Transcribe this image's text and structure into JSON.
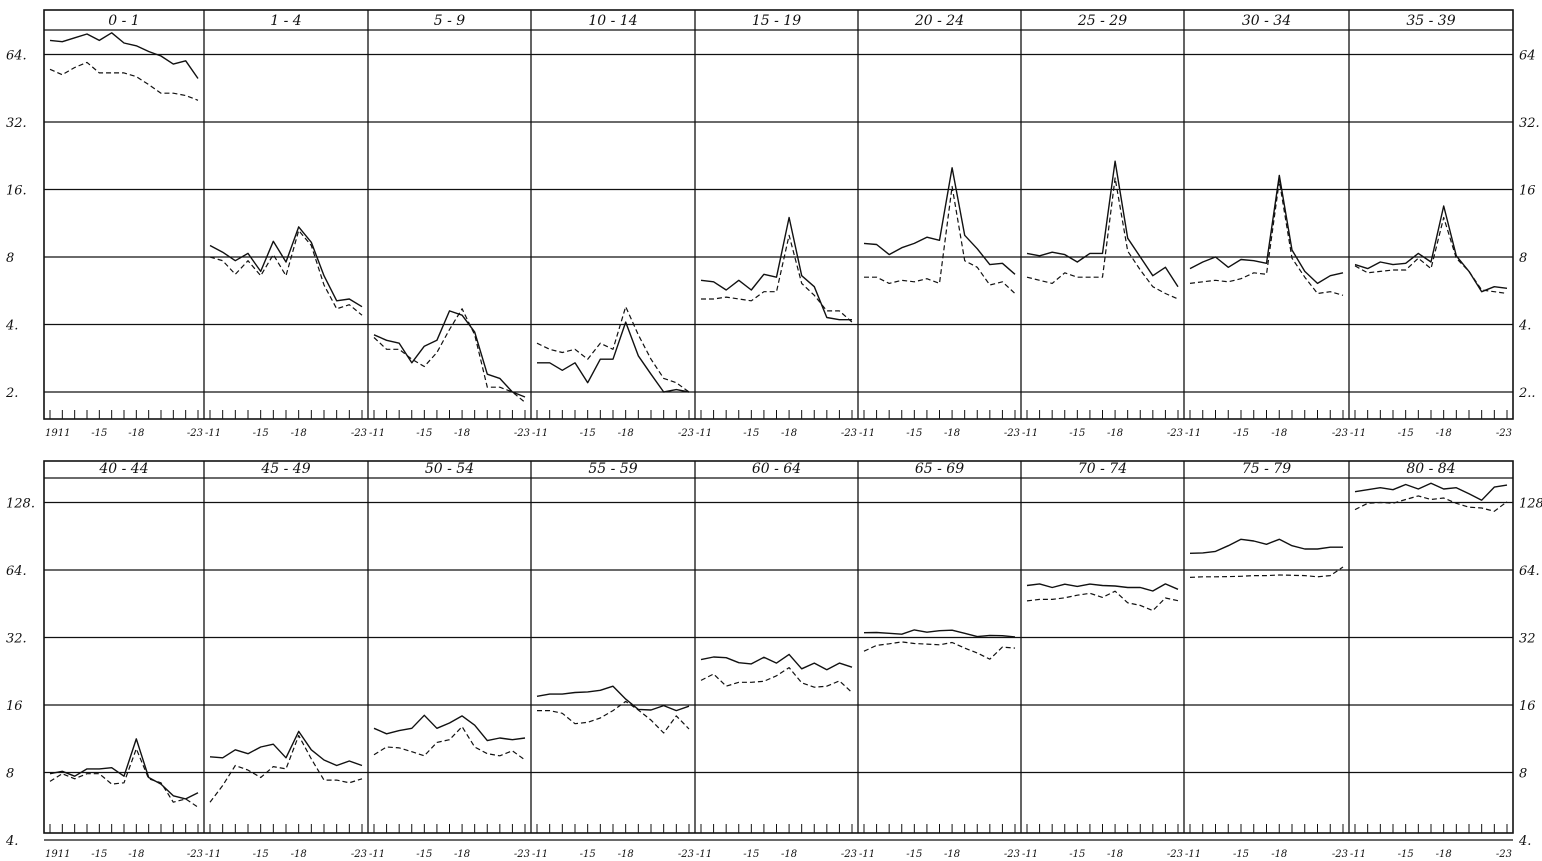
{
  "chart_data": [
    {
      "type": "line",
      "title": "",
      "scale": "log2",
      "ylim": [
        1.7,
        88
      ],
      "ytick_labels": {
        "left": [
          "64.",
          "32.",
          "16.",
          "8",
          "4.",
          "2."
        ],
        "right": [
          "64",
          "32.",
          "16",
          "8",
          "4.",
          "2.."
        ]
      },
      "x": [
        1911,
        1912,
        1913,
        1914,
        1915,
        1916,
        1917,
        1918,
        1919,
        1920,
        1921,
        1922,
        1923
      ],
      "x_tick_labels": [
        "1911",
        "-15",
        "-18",
        "-23"
      ],
      "panels": [
        {
          "age": "0 - 1",
          "series": [
            {
              "style": "solid",
              "values": [
                74,
                73,
                76,
                79,
                74,
                80,
                72,
                70,
                66,
                63,
                58,
                60,
                50
              ]
            },
            {
              "style": "dashed",
              "values": [
                55,
                52,
                56,
                59,
                53,
                53,
                53,
                51,
                47,
                43,
                43,
                42,
                40
              ]
            }
          ]
        },
        {
          "age": "1 - 4",
          "series": [
            {
              "style": "solid",
              "values": [
                9,
                8.4,
                7.7,
                8.3,
                6.9,
                9.4,
                7.6,
                10.9,
                9.3,
                6.6,
                5.1,
                5.2,
                4.8
              ]
            },
            {
              "style": "dashed",
              "values": [
                8,
                7.7,
                6.7,
                7.7,
                6.6,
                8.2,
                6.6,
                10.5,
                9,
                6,
                4.7,
                4.9,
                4.4
              ]
            }
          ]
        },
        {
          "age": "5 - 9",
          "series": [
            {
              "style": "solid",
              "values": [
                3.6,
                3.4,
                3.3,
                2.7,
                3.2,
                3.4,
                4.6,
                4.4,
                3.7,
                2.4,
                2.3,
                2,
                1.9
              ]
            },
            {
              "style": "dashed",
              "values": [
                3.5,
                3.1,
                3.1,
                2.8,
                2.6,
                3,
                3.8,
                4.7,
                3.6,
                2.1,
                2.1,
                2,
                1.8
              ]
            }
          ]
        },
        {
          "age": "10 - 14",
          "series": [
            {
              "style": "solid",
              "values": [
                2.7,
                2.7,
                2.5,
                2.7,
                2.2,
                2.8,
                2.8,
                4.1,
                2.9,
                2.4,
                2,
                2.05,
                2
              ]
            },
            {
              "style": "dashed",
              "values": [
                3.3,
                3.1,
                3,
                3.1,
                2.8,
                3.3,
                3.1,
                4.8,
                3.6,
                2.8,
                2.3,
                2.2,
                2
              ]
            }
          ]
        },
        {
          "age": "15 - 19",
          "series": [
            {
              "style": "solid",
              "values": [
                6.3,
                6.2,
                5.7,
                6.3,
                5.7,
                6.7,
                6.5,
                12,
                6.6,
                5.9,
                4.3,
                4.2,
                4.2
              ]
            },
            {
              "style": "dashed",
              "values": [
                5.2,
                5.2,
                5.3,
                5.2,
                5.1,
                5.6,
                5.6,
                10,
                6.1,
                5.4,
                4.6,
                4.6,
                4.1
              ]
            }
          ]
        },
        {
          "age": "20 - 24",
          "series": [
            {
              "style": "solid",
              "values": [
                9.2,
                9.1,
                8.2,
                8.8,
                9.2,
                9.8,
                9.5,
                20,
                10,
                8.7,
                7.4,
                7.5,
                6.7
              ]
            },
            {
              "style": "dashed",
              "values": [
                6.5,
                6.5,
                6.1,
                6.3,
                6.2,
                6.4,
                6.1,
                16.5,
                7.7,
                7.2,
                6,
                6.2,
                5.5
              ]
            }
          ]
        },
        {
          "age": "25 - 29",
          "series": [
            {
              "style": "solid",
              "values": [
                8.3,
                8.1,
                8.4,
                8.2,
                7.6,
                8.3,
                8.3,
                21.4,
                9.7,
                8,
                6.6,
                7.2,
                5.9
              ]
            },
            {
              "style": "dashed",
              "values": [
                6.5,
                6.3,
                6.1,
                6.8,
                6.5,
                6.5,
                6.5,
                18,
                8.5,
                7,
                5.9,
                5.5,
                5.2
              ]
            }
          ]
        },
        {
          "age": "30 - 34",
          "series": [
            {
              "style": "solid",
              "values": [
                7.1,
                7.6,
                8,
                7.2,
                7.8,
                7.7,
                7.5,
                18.5,
                8.6,
                6.9,
                6.1,
                6.6,
                6.8
              ]
            },
            {
              "style": "dashed",
              "values": [
                6.1,
                6.2,
                6.3,
                6.2,
                6.4,
                6.8,
                6.7,
                17.5,
                7.9,
                6.5,
                5.5,
                5.6,
                5.4
              ]
            }
          ]
        },
        {
          "age": "35 - 39",
          "series": [
            {
              "style": "solid",
              "values": [
                7.4,
                7.1,
                7.6,
                7.4,
                7.5,
                8.3,
                7.6,
                13.5,
                8.1,
                6.9,
                5.6,
                5.9,
                5.8
              ]
            },
            {
              "style": "dashed",
              "values": [
                7.3,
                6.8,
                6.9,
                7,
                7,
                7.9,
                7.1,
                12,
                7.9,
                6.9,
                5.7,
                5.6,
                5.5
              ]
            }
          ]
        }
      ]
    },
    {
      "type": "line",
      "title": "",
      "scale": "log2",
      "ylim": [
        3.6,
        175
      ],
      "ytick_labels": {
        "left": [
          "128.",
          "64.",
          "32.",
          "16",
          "8",
          "4."
        ],
        "right": [
          "128.",
          "64.",
          "32",
          "16",
          "8",
          "4."
        ]
      },
      "x": [
        1911,
        1912,
        1913,
        1914,
        1915,
        1916,
        1917,
        1918,
        1919,
        1920,
        1921,
        1922,
        1923
      ],
      "x_tick_labels": [
        "1911",
        "-15",
        "-18",
        "-23"
      ],
      "panels": [
        {
          "age": "40 - 44",
          "series": [
            {
              "style": "solid",
              "values": [
                7.9,
                8.1,
                7.7,
                8.3,
                8.3,
                8.4,
                7.7,
                11.3,
                7.6,
                7.1,
                6.3,
                6.1,
                6.5
              ]
            },
            {
              "style": "dashed",
              "values": [
                7.3,
                7.9,
                7.5,
                7.9,
                7.9,
                7.1,
                7.2,
                10.2,
                7.5,
                7.2,
                5.9,
                6.1,
                5.6
              ]
            }
          ]
        },
        {
          "age": "45 - 49",
          "series": [
            {
              "style": "solid",
              "values": [
                9.4,
                9.3,
                10.1,
                9.7,
                10.4,
                10.7,
                9.3,
                12.2,
                10.1,
                9.1,
                8.6,
                9,
                8.6
              ]
            },
            {
              "style": "dashed",
              "values": [
                5.9,
                7,
                8.6,
                8.2,
                7.6,
                8.5,
                8.3,
                11.7,
                9.2,
                7.4,
                7.4,
                7.2,
                7.5
              ]
            }
          ]
        },
        {
          "age": "50 - 54",
          "series": [
            {
              "style": "solid",
              "values": [
                12.6,
                11.9,
                12.3,
                12.6,
                14.4,
                12.6,
                13.3,
                14.3,
                13,
                11.1,
                11.4,
                11.2,
                11.4
              ]
            },
            {
              "style": "dashed",
              "values": [
                9.6,
                10.4,
                10.3,
                9.9,
                9.5,
                10.9,
                11.2,
                12.8,
                10.4,
                9.7,
                9.5,
                10,
                9.1
              ]
            }
          ]
        },
        {
          "age": "55 - 59",
          "series": [
            {
              "style": "solid",
              "values": [
                17.5,
                17.9,
                17.9,
                18.2,
                18.3,
                18.6,
                19.4,
                17,
                15.3,
                15.2,
                15.9,
                15.1,
                15.8
              ]
            },
            {
              "style": "dashed",
              "values": [
                15.1,
                15.1,
                14.7,
                13.2,
                13.4,
                14,
                15.1,
                16.6,
                15.2,
                13.7,
                12,
                14.3,
                12.5
              ]
            }
          ]
        },
        {
          "age": "60 - 64",
          "series": [
            {
              "style": "solid",
              "values": [
                25.5,
                26.2,
                26,
                24.7,
                24.4,
                26.1,
                24.6,
                26.9,
                23.2,
                24.6,
                23,
                24.6,
                23.6
              ]
            },
            {
              "style": "dashed",
              "values": [
                20.6,
                22,
                19.4,
                20.2,
                20.2,
                20.4,
                21.6,
                23.5,
                20.1,
                19.2,
                19.4,
                20.5,
                18.2
              ]
            }
          ]
        },
        {
          "age": "65 - 69",
          "series": [
            {
              "style": "solid",
              "values": [
                33.6,
                33.7,
                33.4,
                33.1,
                34.6,
                33.8,
                34.3,
                34.5,
                33.4,
                32.3,
                32.7,
                32.6,
                32.2
              ]
            },
            {
              "style": "dashed",
              "values": [
                27.8,
                29.5,
                30,
                30.6,
                30.1,
                29.9,
                29.7,
                30.4,
                28.7,
                27.3,
                25.6,
                29,
                28.7
              ]
            }
          ]
        },
        {
          "age": "70 - 74",
          "series": [
            {
              "style": "solid",
              "values": [
                54.6,
                55.5,
                53.5,
                55.3,
                54.1,
                55.4,
                54.6,
                54.3,
                53.5,
                53.5,
                51.6,
                55.5,
                52.5
              ]
            },
            {
              "style": "dashed",
              "values": [
                46.6,
                47.3,
                47.3,
                48.1,
                49.4,
                50.4,
                48.3,
                51.5,
                45.7,
                44.5,
                42.2,
                48,
                46.7
              ]
            }
          ]
        },
        {
          "age": "75 - 79",
          "series": [
            {
              "style": "solid",
              "values": [
                76,
                76.3,
                77.5,
                82.1,
                87.7,
                86.2,
                83.3,
                87.7,
                82.1,
                79.4,
                79.4,
                80.9,
                80.9
              ]
            },
            {
              "style": "dashed",
              "values": [
                59.3,
                59.7,
                59.7,
                59.8,
                60,
                60.4,
                60.4,
                60.8,
                60.6,
                60.4,
                59.7,
                60.4,
                66
              ]
            }
          ]
        },
        {
          "age": "80 - 84",
          "series": [
            {
              "style": "solid",
              "values": [
                143,
                146,
                149,
                146,
                154,
                147,
                156,
                147,
                149,
                140,
                131,
                150,
                153
              ]
            },
            {
              "style": "dashed",
              "values": [
                119,
                127,
                128,
                127,
                132,
                137,
                132,
                134,
                127,
                122,
                121,
                117,
                129
              ]
            }
          ]
        }
      ]
    }
  ],
  "colors": {
    "ink": "#111111",
    "paper": "#ffffff"
  }
}
